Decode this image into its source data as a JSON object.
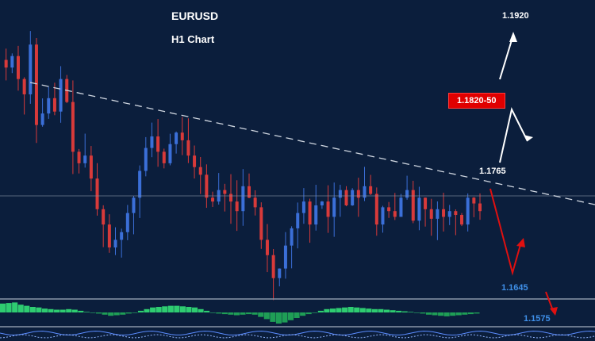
{
  "chart_data": {
    "type": "candlestick",
    "title": "EURUSD",
    "subtitle": "H1 Chart",
    "annotations": {
      "target_high": "1.1920",
      "resistance_zone": "1.1820-50",
      "resistance": "1.1765",
      "support_1": "1.1645",
      "support_2": "1.1575"
    },
    "prices": [
      1.1762,
      1.1758,
      1.1764,
      1.1752,
      1.1744,
      1.177,
      1.1728,
      1.1734,
      1.1742,
      1.1735,
      1.1752,
      1.174,
      1.1714,
      1.1708,
      1.1712,
      1.17,
      1.1684,
      1.1676,
      1.1664,
      1.1668,
      1.1672,
      1.1682,
      1.169,
      1.1704,
      1.1716,
      1.1722,
      1.1714,
      1.1708,
      1.1718,
      1.1724,
      1.172,
      1.1712,
      1.1706,
      1.1702,
      1.169,
      1.1688,
      1.1694,
      1.1692,
      1.1688,
      1.1683,
      1.1696,
      1.169,
      1.1685,
      1.1668,
      1.166,
      1.1648,
      1.1653,
      1.1665,
      1.1674,
      1.1682,
      1.1688,
      1.1676,
      1.1686,
      1.1688,
      1.168,
      1.169,
      1.1694,
      1.1686,
      1.1694,
      1.169,
      1.1696,
      1.1692,
      1.1676,
      1.1685,
      1.1683,
      1.168,
      1.169,
      1.1694,
      1.1678,
      1.169,
      1.1684,
      1.1679,
      1.1684,
      1.168,
      1.1683,
      1.1681,
      1.1676,
      1.169,
      1.1687,
      1.1683
    ],
    "macd_histogram": [
      0.8,
      0.85,
      0.9,
      0.7,
      0.6,
      0.5,
      0.45,
      0.35,
      0.3,
      0.25,
      0.25,
      0.3,
      0.25,
      0.15,
      0.05,
      0.0,
      -0.1,
      -0.2,
      -0.3,
      -0.25,
      -0.2,
      -0.1,
      0.0,
      0.15,
      0.3,
      0.45,
      0.5,
      0.55,
      0.6,
      0.6,
      0.55,
      0.5,
      0.45,
      0.3,
      0.15,
      0.0,
      -0.1,
      -0.15,
      -0.2,
      -0.25,
      -0.2,
      -0.15,
      -0.2,
      -0.4,
      -0.6,
      -0.85,
      -1.0,
      -0.9,
      -0.7,
      -0.5,
      -0.3,
      -0.15,
      0.0,
      0.15,
      0.3,
      0.35,
      0.4,
      0.45,
      0.5,
      0.45,
      0.4,
      0.35,
      0.3,
      0.3,
      0.25,
      0.2,
      0.15,
      0.1,
      0.05,
      0.0,
      -0.1,
      -0.2,
      -0.25,
      -0.3,
      -0.35,
      -0.3,
      -0.25,
      -0.2,
      -0.15,
      -0.1
    ],
    "ylim": [
      1.164,
      1.1785
    ],
    "grid": false,
    "legend": "none",
    "colors": {
      "background": "#0b1e3c",
      "bull": "#3b6fd8",
      "bear": "#d83a3a",
      "trendline": "#cfd6e0",
      "horizontal_line": "#8a96a8",
      "arrow_up": "#ffffff",
      "arrow_down": "#e01010",
      "macd_pos": "#2ecc71",
      "macd_neg": "#1f9e56",
      "box_bg": "#e00000",
      "support_text": "#3f8fe8"
    }
  }
}
